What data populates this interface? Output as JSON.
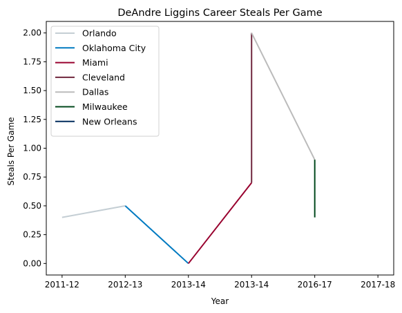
{
  "chart_data": {
    "type": "line",
    "title": "DeAndre Liggins Career Steals Per Game",
    "xlabel": "Year",
    "ylabel": "Steals Per Game",
    "categories": [
      "2011-12",
      "2012-13",
      "2013-14",
      "2013-14",
      "2016-17",
      "2017-18"
    ],
    "ylim": [
      -0.1,
      2.1
    ],
    "yticks": [
      "0.00",
      "0.25",
      "0.50",
      "0.75",
      "1.00",
      "1.25",
      "1.50",
      "1.75",
      "2.00"
    ],
    "grid": false,
    "legend_position": "top-left",
    "series": [
      {
        "name": "Orlando",
        "color": "#c4ced4",
        "points": [
          [
            0,
            0.4
          ],
          [
            1,
            0.5
          ]
        ]
      },
      {
        "name": "Oklahoma City",
        "color": "#007ac1",
        "points": [
          [
            1,
            0.5
          ],
          [
            2,
            0.0
          ]
        ]
      },
      {
        "name": "Miami",
        "color": "#98002e",
        "points": [
          [
            2,
            0.0
          ],
          [
            3,
            0.7
          ]
        ]
      },
      {
        "name": "Cleveland",
        "color": "#6f263d",
        "points": [
          [
            3,
            0.7
          ],
          [
            3,
            2.0
          ]
        ]
      },
      {
        "name": "Dallas",
        "color": "#bbbbbb",
        "points": [
          [
            3,
            2.0
          ],
          [
            4,
            0.9
          ]
        ]
      },
      {
        "name": "Milwaukee",
        "color": "#00471b",
        "points": [
          [
            4,
            0.9
          ],
          [
            4,
            0.4
          ]
        ]
      },
      {
        "name": "New Orleans",
        "color": "#002b5c",
        "points": []
      }
    ]
  }
}
